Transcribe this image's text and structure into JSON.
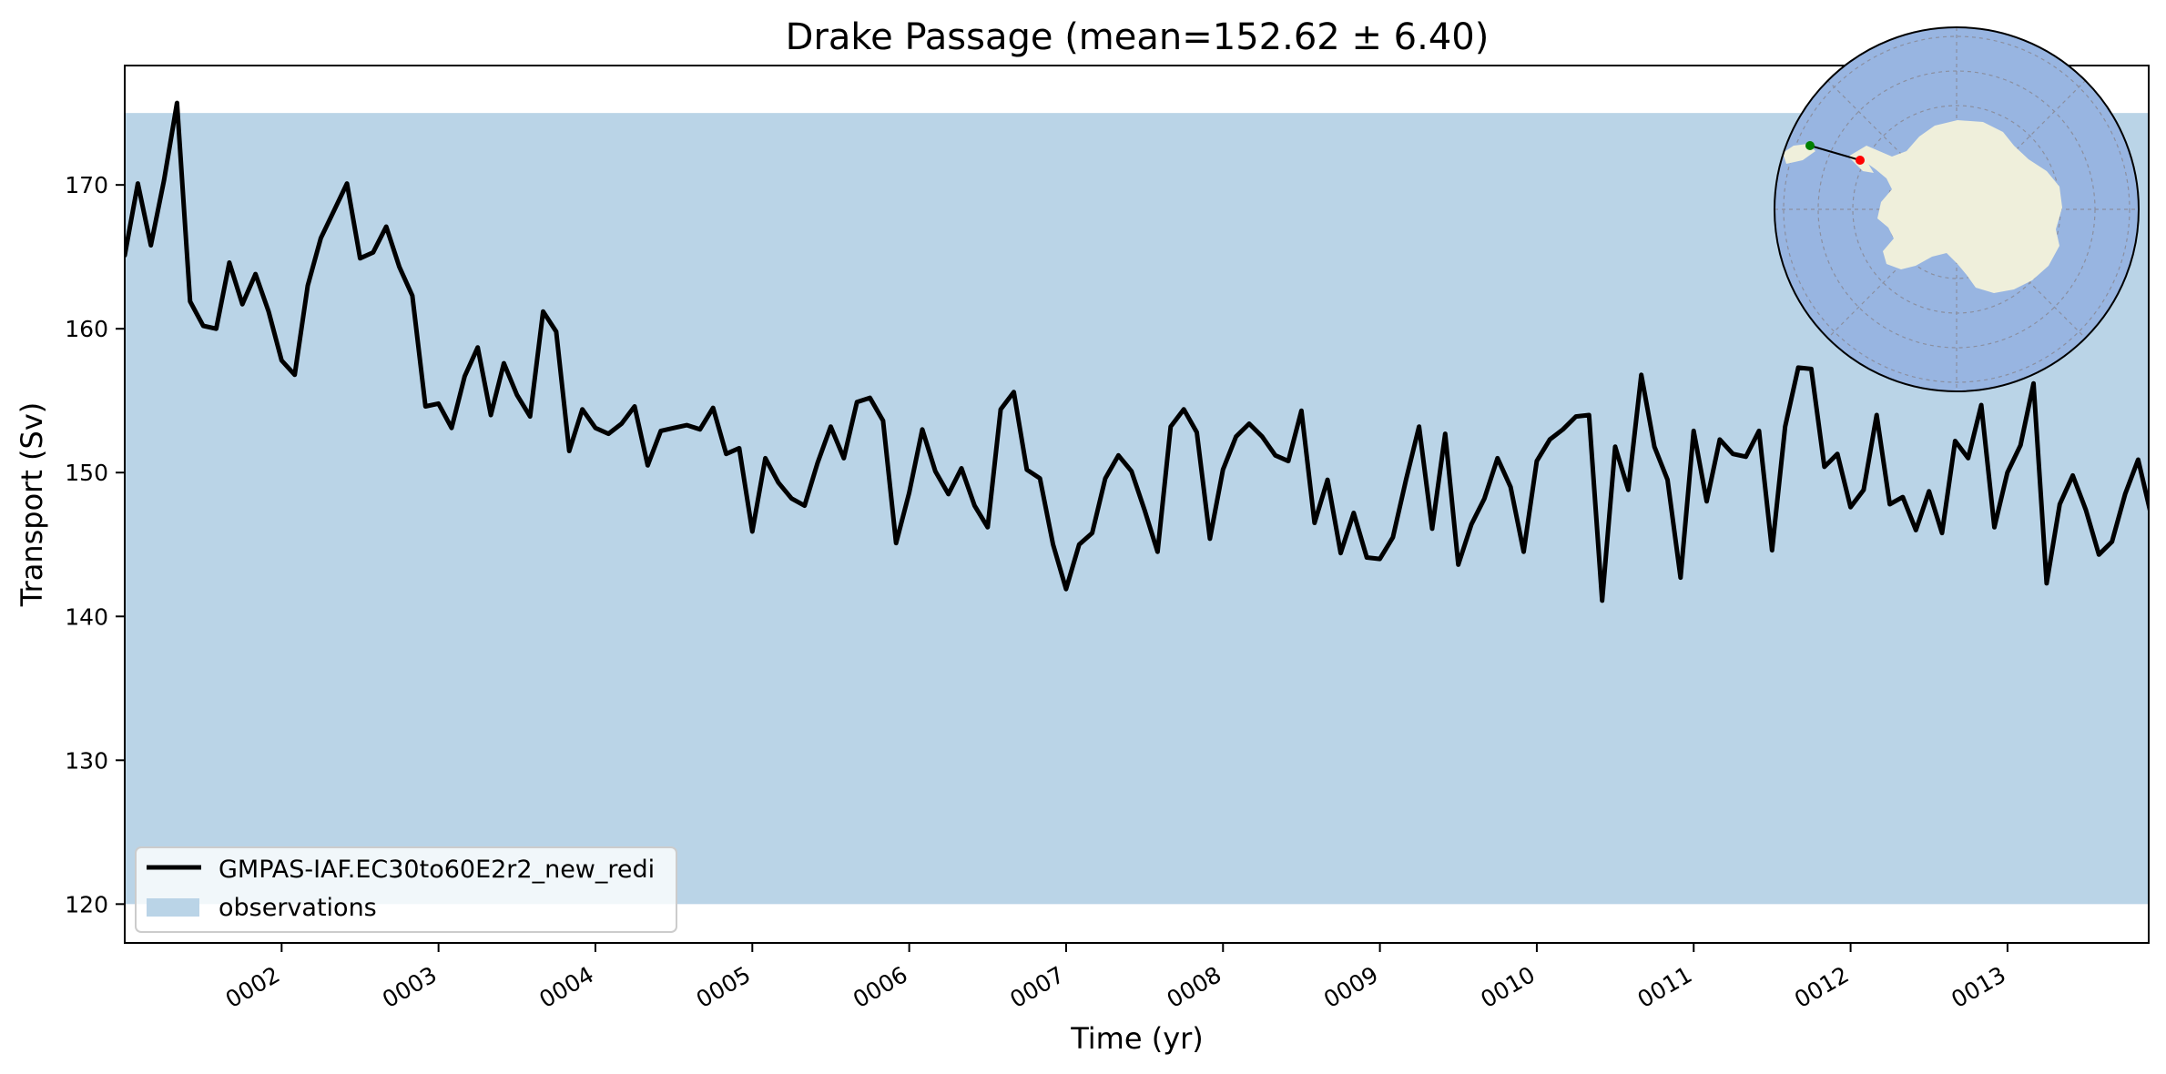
{
  "chart_data": {
    "type": "line",
    "title": "Drake Passage (mean=152.62 ± 6.40)",
    "xlabel": "Time (yr)",
    "ylabel": "Transport (Sv)",
    "xlim": [
      1.0,
      13.9
    ],
    "ylim": [
      117.3,
      178.3
    ],
    "yticks": [
      120,
      130,
      140,
      150,
      160,
      170
    ],
    "xticks": [
      {
        "value": 2,
        "label": "0002"
      },
      {
        "value": 3,
        "label": "0003"
      },
      {
        "value": 4,
        "label": "0004"
      },
      {
        "value": 5,
        "label": "0005"
      },
      {
        "value": 6,
        "label": "0006"
      },
      {
        "value": 7,
        "label": "0007"
      },
      {
        "value": 8,
        "label": "0008"
      },
      {
        "value": 9,
        "label": "0009"
      },
      {
        "value": 10,
        "label": "0010"
      },
      {
        "value": 11,
        "label": "0011"
      },
      {
        "value": 12,
        "label": "0012"
      },
      {
        "value": 13,
        "label": "0013"
      }
    ],
    "observations": {
      "name": "observations",
      "min": 120,
      "max": 175,
      "color": "#bad4e7"
    },
    "legend_position": "lower-left",
    "grid": false,
    "series": [
      {
        "name": "GMPAS-IAF.EC30to60E2r2_new_redi",
        "color": "#000000",
        "start_year": 1.0,
        "step_year": 0.08333,
        "values": [
          165.1,
          170.1,
          165.8,
          170.3,
          175.7,
          161.9,
          160.2,
          160.0,
          164.6,
          161.7,
          163.8,
          161.2,
          157.8,
          156.8,
          163.0,
          166.3,
          168.2,
          170.1,
          164.9,
          165.3,
          167.1,
          164.3,
          162.3,
          154.6,
          154.8,
          153.1,
          156.7,
          158.7,
          154.0,
          157.6,
          155.4,
          153.9,
          161.2,
          159.8,
          151.5,
          154.4,
          153.1,
          152.7,
          153.4,
          154.6,
          150.5,
          152.9,
          153.1,
          153.3,
          153.0,
          154.5,
          151.3,
          151.7,
          145.9,
          151.0,
          149.3,
          148.2,
          147.7,
          150.7,
          153.2,
          151.0,
          154.9,
          155.2,
          153.6,
          145.1,
          148.6,
          153.0,
          150.1,
          148.5,
          150.3,
          147.7,
          146.2,
          154.4,
          155.6,
          150.2,
          149.6,
          145.0,
          141.9,
          145.0,
          145.8,
          149.6,
          151.2,
          150.1,
          147.4,
          144.5,
          153.2,
          154.4,
          152.8,
          145.4,
          150.2,
          152.5,
          153.4,
          152.5,
          151.2,
          150.8,
          154.3,
          146.5,
          149.5,
          144.4,
          147.2,
          144.1,
          144.0,
          145.5,
          149.5,
          153.2,
          146.1,
          152.7,
          143.6,
          146.4,
          148.2,
          151.0,
          149.0,
          144.5,
          150.8,
          152.3,
          153.0,
          153.9,
          154.0,
          141.1,
          151.8,
          148.8,
          156.8,
          151.8,
          149.5,
          142.7,
          152.9,
          148.0,
          152.3,
          151.3,
          151.1,
          152.9,
          144.6,
          153.2,
          157.3,
          157.2,
          150.4,
          151.3,
          147.6,
          148.8,
          154.0,
          147.8,
          148.3,
          146.0,
          148.7,
          145.8,
          152.2,
          151.0,
          154.7,
          146.2,
          150.0,
          151.9,
          156.2,
          142.3,
          147.8,
          149.8,
          147.4,
          144.3,
          145.2,
          148.5,
          150.9,
          147.0
        ]
      }
    ],
    "inset_map": {
      "projection": "south-polar-stereographic",
      "ocean_color": "#98b5e1",
      "land_color": "#efefdb",
      "section_start_color": "#008000",
      "section_end_color": "#ff0000"
    }
  }
}
